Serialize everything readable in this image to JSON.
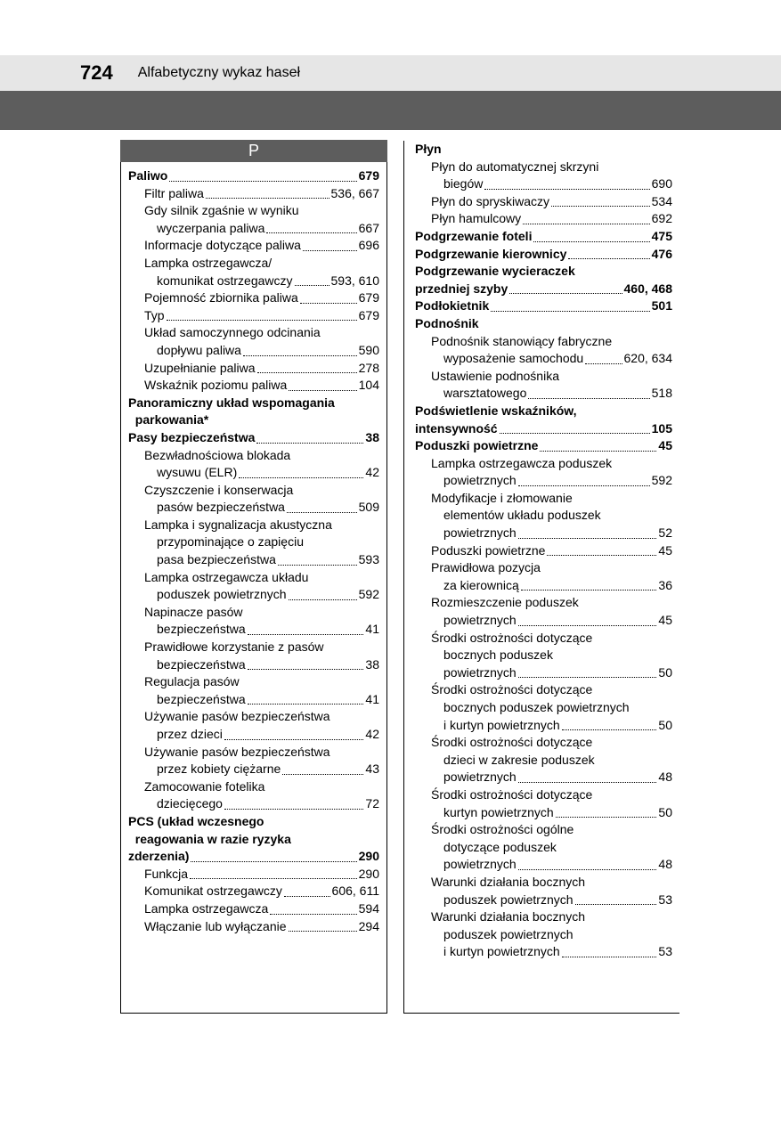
{
  "header": {
    "page_number": "724",
    "title": "Alfabetyczny wykaz haseł"
  },
  "section_letter": "P",
  "left": [
    {
      "t": "e",
      "bold": true,
      "lvl": 0,
      "label": "Paliwo",
      "page": "679"
    },
    {
      "t": "e",
      "lvl": 1,
      "label": "Filtr paliwa",
      "page": "536, 667"
    },
    {
      "t": "l",
      "lvl": 1,
      "label": "Gdy silnik zgaśnie w wyniku"
    },
    {
      "t": "e",
      "lvl": 2,
      "label": "wyczerpania paliwa",
      "page": "667"
    },
    {
      "t": "e",
      "lvl": 1,
      "label": "Informacje dotyczące paliwa",
      "page": "696"
    },
    {
      "t": "l",
      "lvl": 1,
      "label": "Lampka ostrzegawcza/"
    },
    {
      "t": "e",
      "lvl": 2,
      "label": "komunikat ostrzegawczy",
      "page": "593, 610"
    },
    {
      "t": "e",
      "lvl": 1,
      "label": "Pojemność zbiornika paliwa",
      "page": "679"
    },
    {
      "t": "e",
      "lvl": 1,
      "label": "Typ",
      "page": "679"
    },
    {
      "t": "l",
      "lvl": 1,
      "label": "Układ samoczynnego odcinania"
    },
    {
      "t": "e",
      "lvl": 2,
      "label": "dopływu paliwa",
      "page": "590"
    },
    {
      "t": "e",
      "lvl": 1,
      "label": "Uzupełnianie paliwa",
      "page": "278"
    },
    {
      "t": "e",
      "lvl": 1,
      "label": "Wskaźnik poziomu paliwa",
      "page": "104"
    },
    {
      "t": "l",
      "bold": true,
      "lvl": 0,
      "label": "Panoramiczny układ wspomagania"
    },
    {
      "t": "l",
      "bold": true,
      "lvl": 0,
      "label": "  parkowania*"
    },
    {
      "t": "e",
      "bold": true,
      "lvl": 0,
      "label": "Pasy bezpieczeństwa",
      "page": "38"
    },
    {
      "t": "l",
      "lvl": 1,
      "label": "Bezwładnościowa blokada"
    },
    {
      "t": "e",
      "lvl": 2,
      "label": "wysuwu (ELR)",
      "page": "42"
    },
    {
      "t": "l",
      "lvl": 1,
      "label": "Czyszczenie i konserwacja"
    },
    {
      "t": "e",
      "lvl": 2,
      "label": "pasów bezpieczeństwa",
      "page": "509"
    },
    {
      "t": "l",
      "lvl": 1,
      "label": "Lampka i sygnalizacja akustyczna"
    },
    {
      "t": "l",
      "lvl": 2,
      "label": "przypominające o zapięciu"
    },
    {
      "t": "e",
      "lvl": 2,
      "label": "pasa bezpieczeństwa",
      "page": "593"
    },
    {
      "t": "l",
      "lvl": 1,
      "label": "Lampka ostrzegawcza układu"
    },
    {
      "t": "e",
      "lvl": 2,
      "label": "poduszek powietrznych",
      "page": "592"
    },
    {
      "t": "l",
      "lvl": 1,
      "label": "Napinacze pasów"
    },
    {
      "t": "e",
      "lvl": 2,
      "label": "bezpieczeństwa",
      "page": "41"
    },
    {
      "t": "l",
      "lvl": 1,
      "label": "Prawidłowe korzystanie z pasów"
    },
    {
      "t": "e",
      "lvl": 2,
      "label": "bezpieczeństwa",
      "page": "38"
    },
    {
      "t": "l",
      "lvl": 1,
      "label": "Regulacja pasów"
    },
    {
      "t": "e",
      "lvl": 2,
      "label": "bezpieczeństwa",
      "page": "41"
    },
    {
      "t": "l",
      "lvl": 1,
      "label": "Używanie pasów bezpieczeństwa"
    },
    {
      "t": "e",
      "lvl": 2,
      "label": "przez dzieci",
      "page": "42"
    },
    {
      "t": "l",
      "lvl": 1,
      "label": "Używanie pasów bezpieczeństwa"
    },
    {
      "t": "e",
      "lvl": 2,
      "label": "przez kobiety ciężarne",
      "page": "43"
    },
    {
      "t": "l",
      "lvl": 1,
      "label": "Zamocowanie fotelika"
    },
    {
      "t": "e",
      "lvl": 2,
      "label": "dziecięcego",
      "page": "72"
    },
    {
      "t": "l",
      "bold": true,
      "lvl": 0,
      "label": "PCS (układ wczesnego"
    },
    {
      "t": "l",
      "bold": true,
      "lvl": 0,
      "label": "  reagowania w razie ryzyka"
    },
    {
      "t": "e",
      "bold": true,
      "lvl": 0,
      "label": "  zderzenia)",
      "page": "290"
    },
    {
      "t": "e",
      "lvl": 1,
      "label": "Funkcja",
      "page": "290"
    },
    {
      "t": "e",
      "lvl": 1,
      "label": "Komunikat ostrzegawczy",
      "page": "606, 611"
    },
    {
      "t": "e",
      "lvl": 1,
      "label": "Lampka ostrzegawcza",
      "page": "594"
    },
    {
      "t": "e",
      "lvl": 1,
      "label": "Włączanie lub wyłączanie",
      "page": "294"
    }
  ],
  "right": [
    {
      "t": "l",
      "bold": true,
      "lvl": 0,
      "label": "Płyn"
    },
    {
      "t": "l",
      "lvl": 1,
      "label": "Płyn do automatycznej skrzyni"
    },
    {
      "t": "e",
      "lvl": 2,
      "label": "biegów",
      "page": "690"
    },
    {
      "t": "e",
      "lvl": 1,
      "label": "Płyn do spryskiwaczy",
      "page": "534"
    },
    {
      "t": "e",
      "lvl": 1,
      "label": "Płyn hamulcowy",
      "page": "692"
    },
    {
      "t": "e",
      "bold": true,
      "lvl": 0,
      "label": "Podgrzewanie foteli",
      "page": "475"
    },
    {
      "t": "e",
      "bold": true,
      "lvl": 0,
      "label": "Podgrzewanie kierownicy",
      "page": "476"
    },
    {
      "t": "l",
      "bold": true,
      "lvl": 0,
      "label": "Podgrzewanie wycieraczek"
    },
    {
      "t": "e",
      "bold": true,
      "lvl": 0,
      "label": "  przedniej szyby",
      "page": "460, 468"
    },
    {
      "t": "e",
      "bold": true,
      "lvl": 0,
      "label": "Podłokietnik",
      "page": "501"
    },
    {
      "t": "l",
      "bold": true,
      "lvl": 0,
      "label": "Podnośnik"
    },
    {
      "t": "l",
      "lvl": 1,
      "label": "Podnośnik stanowiący fabryczne"
    },
    {
      "t": "e",
      "lvl": 2,
      "label": "wyposażenie samochodu",
      "page": "620, 634"
    },
    {
      "t": "l",
      "lvl": 1,
      "label": "Ustawienie podnośnika"
    },
    {
      "t": "e",
      "lvl": 2,
      "label": "warsztatowego",
      "page": "518"
    },
    {
      "t": "l",
      "bold": true,
      "lvl": 0,
      "label": "Podświetlenie wskaźników,"
    },
    {
      "t": "e",
      "bold": true,
      "lvl": 0,
      "label": "  intensywność",
      "page": "105"
    },
    {
      "t": "e",
      "bold": true,
      "lvl": 0,
      "label": "Poduszki powietrzne",
      "page": "45"
    },
    {
      "t": "l",
      "lvl": 1,
      "label": "Lampka ostrzegawcza poduszek"
    },
    {
      "t": "e",
      "lvl": 2,
      "label": "powietrznych",
      "page": "592"
    },
    {
      "t": "l",
      "lvl": 1,
      "label": "Modyfikacje i złomowanie"
    },
    {
      "t": "l",
      "lvl": 2,
      "label": "elementów układu poduszek"
    },
    {
      "t": "e",
      "lvl": 2,
      "label": "powietrznych",
      "page": "52"
    },
    {
      "t": "e",
      "lvl": 1,
      "label": "Poduszki powietrzne",
      "page": "45"
    },
    {
      "t": "l",
      "lvl": 1,
      "label": "Prawidłowa pozycja"
    },
    {
      "t": "e",
      "lvl": 2,
      "label": "za kierownicą",
      "page": "36"
    },
    {
      "t": "l",
      "lvl": 1,
      "label": "Rozmieszczenie poduszek"
    },
    {
      "t": "e",
      "lvl": 2,
      "label": "powietrznych",
      "page": "45"
    },
    {
      "t": "l",
      "lvl": 1,
      "label": "Środki ostrożności dotyczące"
    },
    {
      "t": "l",
      "lvl": 2,
      "label": "bocznych poduszek"
    },
    {
      "t": "e",
      "lvl": 2,
      "label": "powietrznych",
      "page": "50"
    },
    {
      "t": "l",
      "lvl": 1,
      "label": "Środki ostrożności dotyczące"
    },
    {
      "t": "l",
      "lvl": 2,
      "label": "bocznych poduszek powietrznych"
    },
    {
      "t": "e",
      "lvl": 2,
      "label": "i kurtyn powietrznych",
      "page": "50"
    },
    {
      "t": "l",
      "lvl": 1,
      "label": "Środki ostrożności dotyczące"
    },
    {
      "t": "l",
      "lvl": 2,
      "label": "dzieci w zakresie poduszek"
    },
    {
      "t": "e",
      "lvl": 2,
      "label": "powietrznych",
      "page": "48"
    },
    {
      "t": "l",
      "lvl": 1,
      "label": "Środki ostrożności dotyczące"
    },
    {
      "t": "e",
      "lvl": 2,
      "label": "kurtyn powietrznych",
      "page": "50"
    },
    {
      "t": "l",
      "lvl": 1,
      "label": "Środki ostrożności ogólne"
    },
    {
      "t": "l",
      "lvl": 2,
      "label": "dotyczące poduszek"
    },
    {
      "t": "e",
      "lvl": 2,
      "label": "powietrznych",
      "page": "48"
    },
    {
      "t": "l",
      "lvl": 1,
      "label": "Warunki działania bocznych"
    },
    {
      "t": "e",
      "lvl": 2,
      "label": "poduszek powietrznych",
      "page": "53"
    },
    {
      "t": "l",
      "lvl": 1,
      "label": "Warunki działania bocznych"
    },
    {
      "t": "l",
      "lvl": 2,
      "label": "poduszek powietrznych"
    },
    {
      "t": "e",
      "lvl": 2,
      "label": "i kurtyn powietrznych",
      "page": "53"
    }
  ]
}
